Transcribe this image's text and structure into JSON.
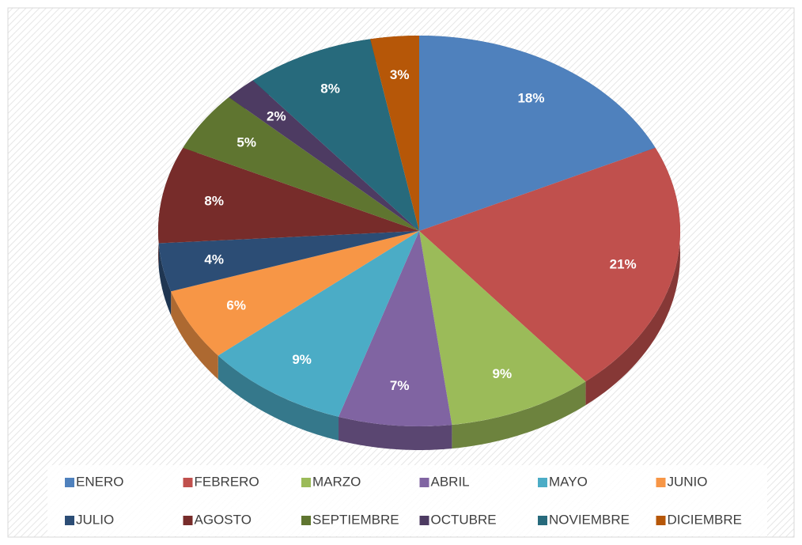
{
  "chart_data": {
    "type": "pie",
    "categories": [
      "ENERO",
      "FEBRERO",
      "MARZO",
      "ABRIL",
      "MAYO",
      "JUNIO",
      "JULIO",
      "AGOSTO",
      "SEPTIEMBRE",
      "OCTUBRE",
      "NOVIEMBRE",
      "DICIEMBRE"
    ],
    "values": [
      18,
      21,
      9,
      7,
      9,
      6,
      4,
      8,
      5,
      2,
      8,
      3
    ],
    "value_labels": [
      "18%",
      "21%",
      "9%",
      "7%",
      "9%",
      "6%",
      "4%",
      "8%",
      "5%",
      "2%",
      "8%",
      "3%"
    ],
    "colors": [
      "#4f81bd",
      "#c0504d",
      "#9bbb59",
      "#8064a2",
      "#4bacc6",
      "#f79646",
      "#2c4d75",
      "#772c2a",
      "#5f7530",
      "#4d3b62",
      "#276a7c",
      "#b65708"
    ],
    "legend": "bottom"
  }
}
